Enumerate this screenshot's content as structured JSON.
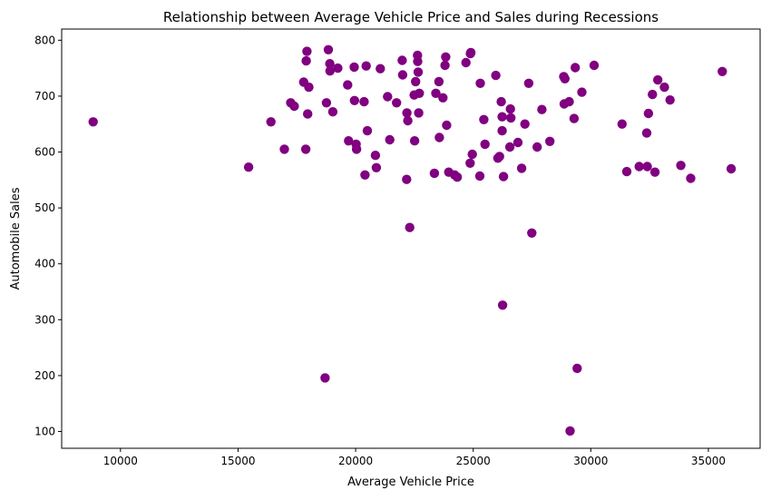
{
  "chart_data": {
    "type": "scatter",
    "title": "Relationship between Average Vehicle Price and Sales during Recessions",
    "xlabel": "Average Vehicle Price",
    "ylabel": "Automobile Sales",
    "xlim": [
      7500,
      37200
    ],
    "ylim": [
      70,
      820
    ],
    "xticks": [
      10000,
      15000,
      20000,
      25000,
      30000,
      35000
    ],
    "yticks": [
      100,
      200,
      300,
      400,
      500,
      600,
      700,
      800
    ],
    "grid": false,
    "marker_color": "#800080",
    "points": [
      [
        8840,
        654
      ],
      [
        15450,
        573
      ],
      [
        16400,
        654
      ],
      [
        16970,
        605
      ],
      [
        17240,
        688
      ],
      [
        17390,
        682
      ],
      [
        17790,
        725
      ],
      [
        17880,
        605
      ],
      [
        17900,
        763
      ],
      [
        17930,
        780
      ],
      [
        17960,
        668
      ],
      [
        18010,
        716
      ],
      [
        18700,
        196
      ],
      [
        18760,
        688
      ],
      [
        18840,
        783
      ],
      [
        18900,
        758
      ],
      [
        18910,
        745
      ],
      [
        19030,
        672
      ],
      [
        19240,
        750
      ],
      [
        19660,
        720
      ],
      [
        19700,
        620
      ],
      [
        19940,
        752
      ],
      [
        19950,
        692
      ],
      [
        20020,
        614
      ],
      [
        20040,
        605
      ],
      [
        20360,
        690
      ],
      [
        20400,
        559
      ],
      [
        20450,
        754
      ],
      [
        20500,
        638
      ],
      [
        20840,
        594
      ],
      [
        20880,
        572
      ],
      [
        21050,
        749
      ],
      [
        21360,
        699
      ],
      [
        21450,
        622
      ],
      [
        21740,
        688
      ],
      [
        21980,
        764
      ],
      [
        22000,
        738
      ],
      [
        22170,
        551
      ],
      [
        22180,
        670
      ],
      [
        22220,
        656
      ],
      [
        22300,
        465
      ],
      [
        22490,
        702
      ],
      [
        22510,
        620
      ],
      [
        22550,
        726
      ],
      [
        22630,
        773
      ],
      [
        22640,
        762
      ],
      [
        22660,
        743
      ],
      [
        22680,
        670
      ],
      [
        22710,
        705
      ],
      [
        23350,
        562
      ],
      [
        23410,
        705
      ],
      [
        23540,
        726
      ],
      [
        23560,
        626
      ],
      [
        23710,
        697
      ],
      [
        23800,
        755
      ],
      [
        23830,
        770
      ],
      [
        23870,
        648
      ],
      [
        23960,
        564
      ],
      [
        24210,
        559
      ],
      [
        24320,
        555
      ],
      [
        24690,
        760
      ],
      [
        24870,
        580
      ],
      [
        24880,
        776
      ],
      [
        24900,
        778
      ],
      [
        24960,
        596
      ],
      [
        25280,
        557
      ],
      [
        25300,
        723
      ],
      [
        25450,
        658
      ],
      [
        25500,
        614
      ],
      [
        25960,
        737
      ],
      [
        26050,
        589
      ],
      [
        26120,
        592
      ],
      [
        26190,
        690
      ],
      [
        26230,
        663
      ],
      [
        26230,
        638
      ],
      [
        26250,
        326
      ],
      [
        26290,
        556
      ],
      [
        26560,
        609
      ],
      [
        26580,
        677
      ],
      [
        26600,
        661
      ],
      [
        26900,
        617
      ],
      [
        27060,
        571
      ],
      [
        27200,
        650
      ],
      [
        27360,
        723
      ],
      [
        27490,
        455
      ],
      [
        27720,
        609
      ],
      [
        27920,
        676
      ],
      [
        28260,
        619
      ],
      [
        28850,
        735
      ],
      [
        28870,
        686
      ],
      [
        28900,
        731
      ],
      [
        29080,
        690
      ],
      [
        29120,
        101
      ],
      [
        29290,
        660
      ],
      [
        29340,
        751
      ],
      [
        29420,
        213
      ],
      [
        29620,
        707
      ],
      [
        30140,
        755
      ],
      [
        31330,
        650
      ],
      [
        31530,
        565
      ],
      [
        32060,
        574
      ],
      [
        32380,
        634
      ],
      [
        32400,
        574
      ],
      [
        32450,
        669
      ],
      [
        32620,
        703
      ],
      [
        32730,
        564
      ],
      [
        32850,
        729
      ],
      [
        33130,
        716
      ],
      [
        33370,
        693
      ],
      [
        33830,
        576
      ],
      [
        34250,
        553
      ],
      [
        35590,
        744
      ],
      [
        35970,
        570
      ]
    ]
  }
}
